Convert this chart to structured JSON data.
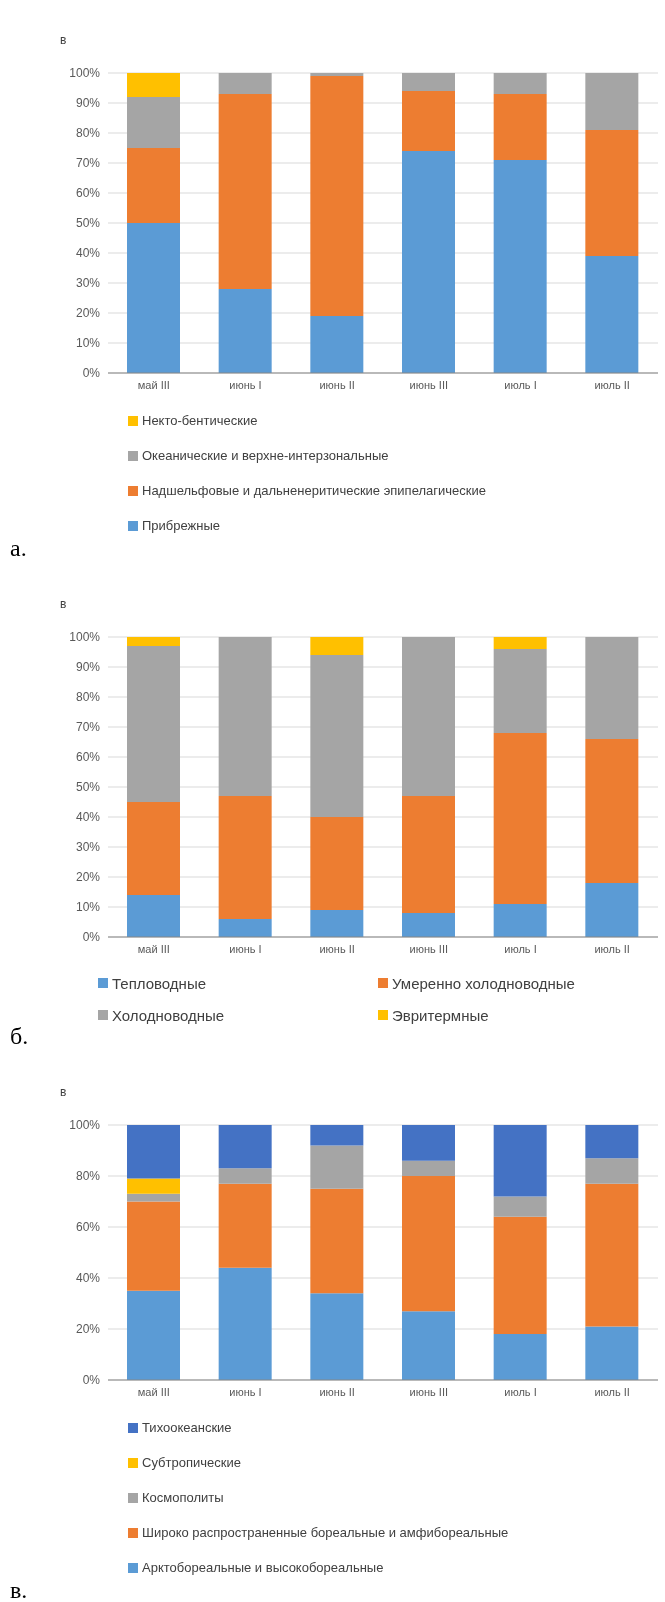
{
  "chart_data": [
    {
      "type": "bar",
      "stacked": true,
      "ylabel": "в",
      "categories": [
        "май III",
        "июнь I",
        "июнь II",
        "июнь III",
        "июль I",
        "июль II"
      ],
      "ylim": [
        0,
        100
      ],
      "yticks": [
        {
          "value": 0,
          "label": "0%"
        },
        {
          "value": 10,
          "label": "10%"
        },
        {
          "value": 20,
          "label": "20%"
        },
        {
          "value": 30,
          "label": "30%"
        },
        {
          "value": 40,
          "label": "40%"
        },
        {
          "value": 50,
          "label": "50%"
        },
        {
          "value": 60,
          "label": "60%"
        },
        {
          "value": 70,
          "label": "70%"
        },
        {
          "value": 80,
          "label": "80%"
        },
        {
          "value": 90,
          "label": "90%"
        },
        {
          "value": 100,
          "label": "100%"
        }
      ],
      "grid": "y",
      "legend": "bottom",
      "annotations": [
        "а."
      ],
      "series": [
        {
          "name": "Прибрежные",
          "color": "#5b9bd5",
          "values": [
            50,
            28,
            19,
            74,
            71,
            39
          ]
        },
        {
          "name": "Надшельфовые и дальненеритические эпипелагические",
          "color": "#ed7d31",
          "values": [
            25,
            65,
            80,
            20,
            22,
            42
          ]
        },
        {
          "name": "Океанические и верхне-интерзональные",
          "color": "#a5a5a5",
          "values": [
            17,
            7,
            1,
            6,
            7,
            19
          ]
        },
        {
          "name": "Некто-бентические",
          "color": "#ffc000",
          "values": [
            8,
            0,
            0,
            0,
            0,
            0
          ]
        }
      ]
    },
    {
      "type": "bar",
      "stacked": true,
      "ylabel": "в",
      "categories": [
        "май III",
        "июнь I",
        "июнь II",
        "июнь III",
        "июль I",
        "июль II"
      ],
      "ylim": [
        0,
        100
      ],
      "yticks": [
        {
          "value": 0,
          "label": "0%"
        },
        {
          "value": 10,
          "label": "10%"
        },
        {
          "value": 20,
          "label": "20%"
        },
        {
          "value": 30,
          "label": "30%"
        },
        {
          "value": 40,
          "label": "40%"
        },
        {
          "value": 50,
          "label": "50%"
        },
        {
          "value": 60,
          "label": "60%"
        },
        {
          "value": 70,
          "label": "70%"
        },
        {
          "value": 80,
          "label": "80%"
        },
        {
          "value": 90,
          "label": "90%"
        },
        {
          "value": 100,
          "label": "100%"
        }
      ],
      "grid": "y",
      "legend": "bottom",
      "annotations": [
        "б."
      ],
      "series": [
        {
          "name": "Тепловодные",
          "color": "#5b9bd5",
          "values": [
            14,
            6,
            9,
            8,
            11,
            18
          ]
        },
        {
          "name": "Умеренно холодноводные",
          "color": "#ed7d31",
          "values": [
            31,
            41,
            31,
            39,
            57,
            48
          ]
        },
        {
          "name": "Холодноводные",
          "color": "#a5a5a5",
          "values": [
            52,
            53,
            54,
            53,
            28,
            34
          ]
        },
        {
          "name": "Эвритермные",
          "color": "#ffc000",
          "values": [
            3,
            0,
            6,
            0,
            4,
            0
          ]
        }
      ]
    },
    {
      "type": "bar",
      "stacked": true,
      "ylabel": "в",
      "categories": [
        "май III",
        "июнь I",
        "июнь II",
        "июнь III",
        "июль I",
        "июль II"
      ],
      "ylim": [
        0,
        100
      ],
      "yticks": [
        {
          "value": 0,
          "label": "0%"
        },
        {
          "value": 20,
          "label": "20%"
        },
        {
          "value": 40,
          "label": "40%"
        },
        {
          "value": 60,
          "label": "60%"
        },
        {
          "value": 80,
          "label": "80%"
        },
        {
          "value": 100,
          "label": "100%"
        }
      ],
      "grid": "y",
      "legend": "bottom",
      "annotations": [
        "в."
      ],
      "series": [
        {
          "name": "Арктобореальные и высокобореальные",
          "color": "#5b9bd5",
          "values": [
            35,
            44,
            34,
            27,
            18,
            21
          ]
        },
        {
          "name": "Широко распространенные бореальные и амфибореальные",
          "color": "#ed7d31",
          "values": [
            35,
            33,
            41,
            53,
            46,
            56
          ]
        },
        {
          "name": "Космополиты",
          "color": "#a5a5a5",
          "values": [
            3,
            6,
            17,
            6,
            8,
            10
          ]
        },
        {
          "name": "Субтропические",
          "color": "#ffc000",
          "values": [
            6,
            0,
            0,
            0,
            0,
            0
          ]
        },
        {
          "name": "Тихоокеанские",
          "color": "#4472c4",
          "values": [
            21,
            17,
            8,
            14,
            28,
            13
          ]
        }
      ]
    }
  ]
}
